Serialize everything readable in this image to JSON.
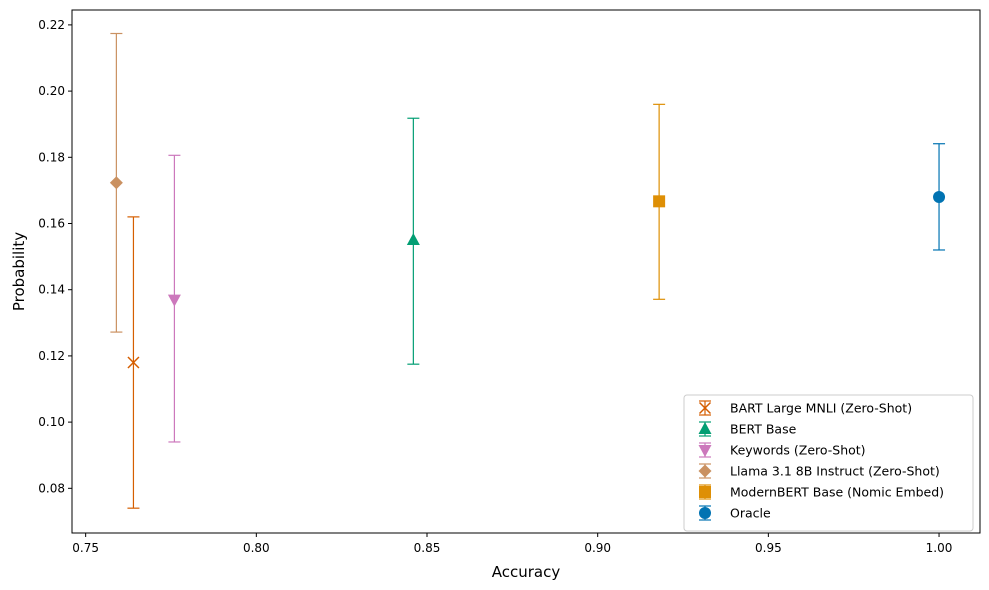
{
  "chart_data": {
    "type": "scatter",
    "title": "",
    "xlabel": "Accuracy",
    "ylabel": "Probability",
    "xlim": [
      0.746,
      1.012
    ],
    "ylim": [
      0.0665,
      0.2245
    ],
    "xticks": [
      0.75,
      0.8,
      0.85,
      0.9,
      0.95,
      1.0
    ],
    "xtick_labels": [
      "0.75",
      "0.80",
      "0.85",
      "0.90",
      "0.95",
      "1.00"
    ],
    "yticks": [
      0.08,
      0.1,
      0.12,
      0.14,
      0.16,
      0.18,
      0.2,
      0.22
    ],
    "ytick_labels": [
      "0.08",
      "0.10",
      "0.12",
      "0.14",
      "0.16",
      "0.18",
      "0.20",
      "0.22"
    ],
    "grid": false,
    "legend_position": "bottom-right",
    "series": [
      {
        "name": "BART Large MNLI (Zero-Shot)",
        "marker": "x",
        "color": "#d55e00",
        "x": 0.764,
        "y": 0.118,
        "err_low": 0.074,
        "err_high": 0.162
      },
      {
        "name": "BERT Base",
        "marker": "triangle-up",
        "color": "#029e73",
        "x": 0.846,
        "y": 0.155,
        "err_low": 0.1175,
        "err_high": 0.1918
      },
      {
        "name": "Keywords (Zero-Shot)",
        "marker": "triangle-down",
        "color": "#cc78bc",
        "x": 0.776,
        "y": 0.137,
        "err_low": 0.094,
        "err_high": 0.1806
      },
      {
        "name": "Llama 3.1 8B Instruct (Zero-Shot)",
        "marker": "diamond",
        "color": "#ca9161",
        "x": 0.759,
        "y": 0.1723,
        "err_low": 0.1272,
        "err_high": 0.2174
      },
      {
        "name": "ModernBERT Base (Nomic Embed)",
        "marker": "square",
        "color": "#de8f05",
        "x": 0.918,
        "y": 0.1667,
        "err_low": 0.1371,
        "err_high": 0.196
      },
      {
        "name": "Oracle",
        "marker": "circle",
        "color": "#0173b2",
        "x": 1.0,
        "y": 0.168,
        "err_low": 0.152,
        "err_high": 0.1841
      }
    ]
  }
}
